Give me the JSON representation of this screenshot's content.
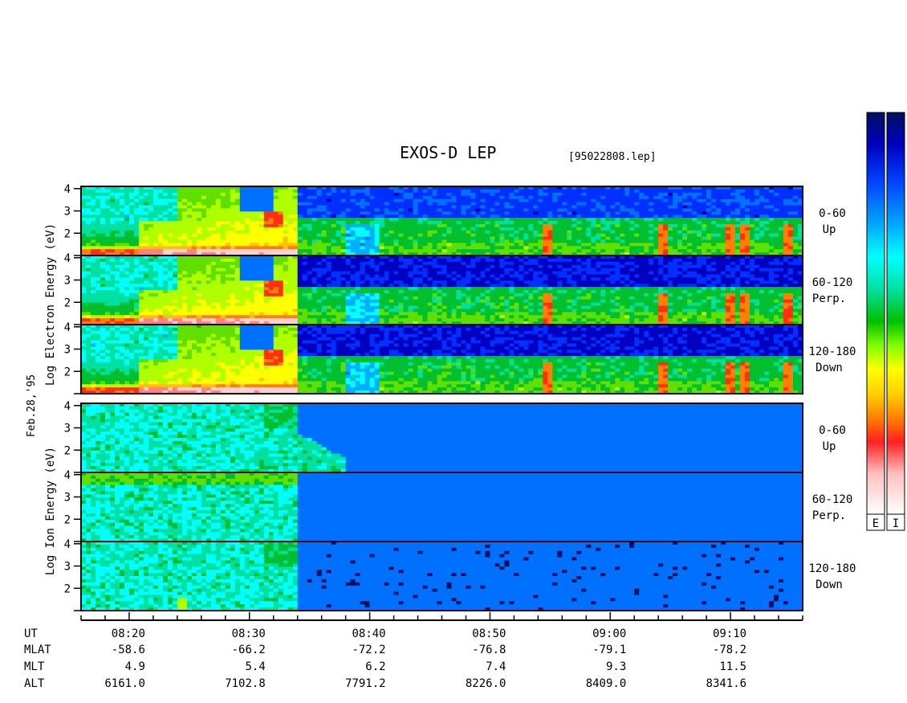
{
  "header": {
    "title": "EXOS-D LEP",
    "file": "[95022808.lep]"
  },
  "side_label": "Feb.28,'95",
  "colorbars": [
    {
      "key": "electron",
      "label": "E"
    },
    {
      "key": "ion",
      "label": "I"
    }
  ],
  "colorscale": [
    "#ffffff",
    "#ffc0c0",
    "#ff2020",
    "#ff8000",
    "#ffd000",
    "#ffff00",
    "#80ff00",
    "#00c000",
    "#00e0c0",
    "#00ffff",
    "#00a0ff",
    "#0040ff",
    "#0000c0",
    "#001060"
  ],
  "chart_data": [
    {
      "type": "heatmap",
      "name": "electron",
      "ylabel": "Log Electron Energy (eV)",
      "panels": [
        {
          "label": [
            "0-60",
            "Up"
          ],
          "yticks": [
            "4",
            "3",
            "2"
          ]
        },
        {
          "label": [
            "60-120",
            "Perp."
          ],
          "yticks": [
            "4",
            "3",
            "2"
          ]
        },
        {
          "label": [
            "120-180",
            "Down"
          ],
          "yticks": [
            "4",
            "3",
            "2"
          ]
        }
      ],
      "x_range": [
        "08:16",
        "09:16"
      ],
      "y_range": [
        1,
        4.1
      ]
    },
    {
      "type": "heatmap",
      "name": "ion",
      "ylabel": "Log Ion Energy (eV)",
      "panels": [
        {
          "label": [
            "0-60",
            "Up"
          ],
          "yticks": [
            "4",
            "3",
            "2"
          ]
        },
        {
          "label": [
            "60-120",
            "Perp."
          ],
          "yticks": [
            "4",
            "3",
            "2"
          ]
        },
        {
          "label": [
            "120-180",
            "Down"
          ],
          "yticks": [
            "4",
            "3",
            "2"
          ]
        }
      ],
      "x_range": [
        "08:16",
        "09:16"
      ],
      "y_range": [
        1,
        4.1
      ]
    }
  ],
  "axis_table": {
    "rows": [
      {
        "label": "UT",
        "values": [
          "08:20",
          "08:30",
          "08:40",
          "08:50",
          "09:00",
          "09:10"
        ]
      },
      {
        "label": "MLAT",
        "values": [
          "-58.6",
          "-66.2",
          "-72.2",
          "-76.8",
          "-79.1",
          "-78.2"
        ]
      },
      {
        "label": "MLT",
        "values": [
          "4.9",
          "5.4",
          "6.2",
          "7.4",
          "9.3",
          "11.5"
        ]
      },
      {
        "label": "ALT",
        "values": [
          "6161.0",
          "7102.8",
          "7791.2",
          "8226.0",
          "8409.0",
          "8341.6"
        ]
      }
    ]
  }
}
